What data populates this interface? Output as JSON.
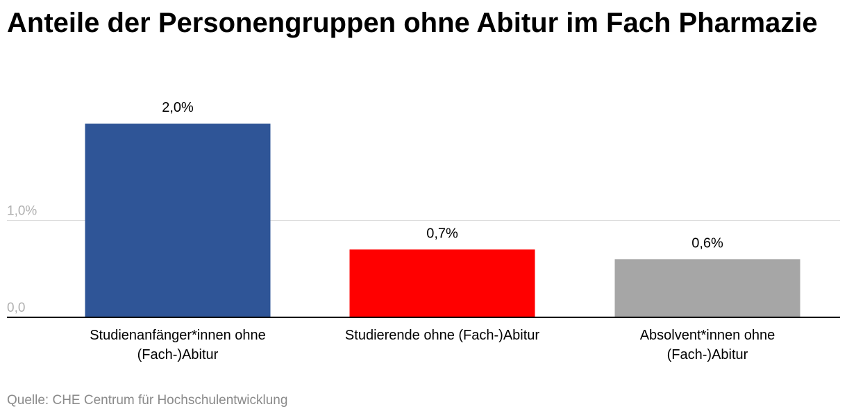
{
  "chart_data": {
    "type": "bar",
    "title": "Anteile der Personengruppen ohne Abitur im Fach Pharmazie",
    "categories": [
      [
        "Studienanfänger*innen ohne",
        "(Fach-)Abitur"
      ],
      [
        "Studierende ohne (Fach-)Abitur"
      ],
      [
        "Absolvent*innen ohne",
        "(Fach-)Abitur"
      ]
    ],
    "values": [
      2.0,
      0.7,
      0.6
    ],
    "value_labels": [
      "2,0%",
      "0,7%",
      "0,6%"
    ],
    "colors": [
      "#2f5597",
      "#ff0000",
      "#a6a6a6"
    ],
    "yticks": [
      {
        "value": 0,
        "label": "0,0"
      },
      {
        "value": 1,
        "label": "1,0%"
      }
    ],
    "ylim": [
      0,
      2.0
    ],
    "xlabel": "",
    "ylabel": "",
    "grid": true,
    "source": "Quelle: CHE Centrum für Hochschulentwicklung"
  }
}
